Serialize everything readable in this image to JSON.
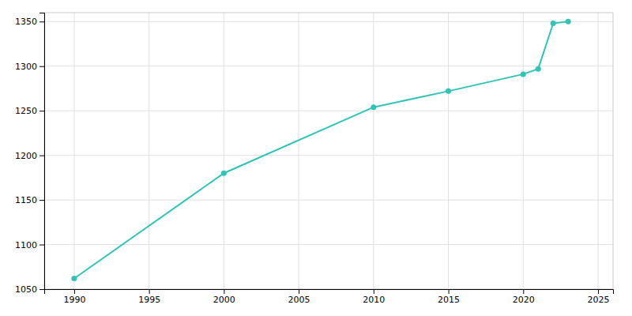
{
  "chart_data": {
    "type": "line",
    "x": [
      1990,
      2000,
      2010,
      2015,
      2020,
      2021,
      2022,
      2023
    ],
    "values": [
      1062,
      1180,
      1254,
      1272,
      1291,
      1297,
      1348,
      1350
    ],
    "color": "#2ec4b6",
    "marker": "circle",
    "xlim": [
      1988,
      2026
    ],
    "ylim": [
      1050,
      1360
    ],
    "xticks": [
      1990,
      1995,
      2000,
      2005,
      2010,
      2015,
      2020,
      2025
    ],
    "yticks": [
      1050,
      1100,
      1150,
      1200,
      1250,
      1300,
      1350
    ],
    "grid": true
  }
}
